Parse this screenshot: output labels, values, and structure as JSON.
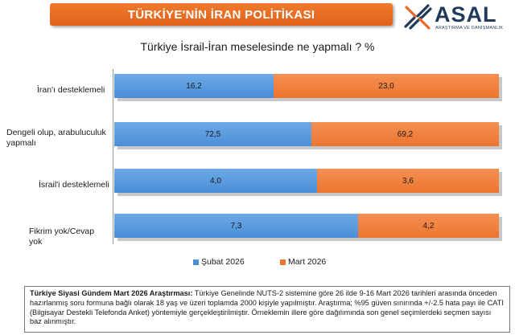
{
  "header": {
    "title": "TÜRKİYE'NİN İRAN POLİTİKASI",
    "logo_text": "ASAL",
    "logo_sub": "ARAŞTIRMA VE DANIŞMANLIK"
  },
  "colors": {
    "title_bg": "#e8692a",
    "series_1": "#4a8ed8",
    "series_2": "#ec7530",
    "logo_dark": "#1f3a5a",
    "logo_orange": "#e8692a"
  },
  "chart_data": {
    "type": "bar",
    "orientation": "horizontal",
    "stacked": "100%",
    "title": "Türkiye İsrail-İran meselesinde ne yapmalı ? %",
    "categories": [
      "İran'ı desteklemeli",
      "Dengeli olup, arabuluculuk yapmalı",
      "İsrail'i desteklemeli",
      "Fikrim yok/Cevap yok"
    ],
    "series": [
      {
        "name": "Şubat 2026",
        "values": [
          16.2,
          72.5,
          4.0,
          7.3
        ],
        "labels": [
          "16,2",
          "72,5",
          "4,0",
          "7,3"
        ]
      },
      {
        "name": "Mart 2026",
        "values": [
          23.0,
          69.2,
          3.6,
          4.2
        ],
        "labels": [
          "23,0",
          "69,2",
          "3,6",
          "4,2"
        ]
      }
    ],
    "legend_position": "bottom",
    "grid": false
  },
  "footnote": {
    "bold_lead": "Türkiye Siyasi Gündem Mart 2026 Araştırması:",
    "text": " Türkiye Genelinde NUTS-2 sistemine göre 26 ilde 9-16 Mart 2026 tarihleri arasında önceden hazırlanmış soru formuna bağlı olarak 18 yaş ve üzeri toplamda 2000 kişiyle yapılmıştır. Araştırma; %95 güven sınırında +/-2.5 hata payı ile CATI (Bilgisayar Destekli Telefonda Anket) yöntemiyle gerçekleştirilmiştir. Örneklemin illere göre dağılımında son genel seçimlerdeki seçmen sayısı baz alınmıştır."
  }
}
